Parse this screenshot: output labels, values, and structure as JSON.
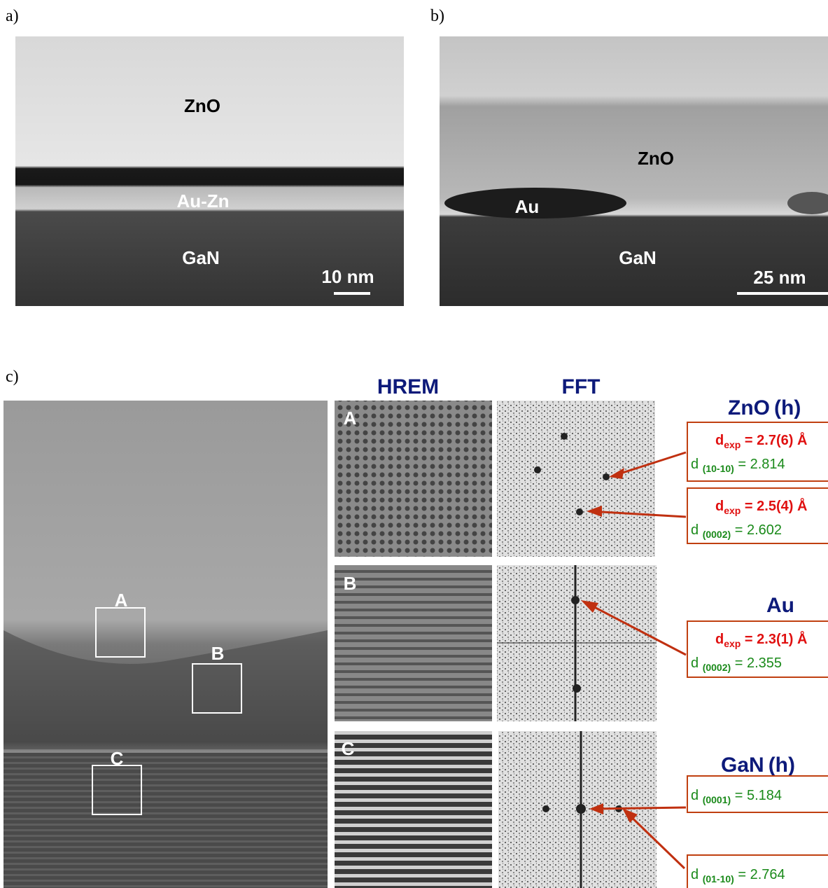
{
  "panels": {
    "a": {
      "label": "a)",
      "layers": [
        "ZnO",
        "Au-Zn",
        "GaN"
      ],
      "scale_bar": "10 nm"
    },
    "b": {
      "label": "b)",
      "layers": [
        "ZnO",
        "Au",
        "GaN"
      ],
      "scale_bar": "25 nm"
    },
    "c": {
      "label": "c)",
      "regions": [
        "A",
        "B",
        "C"
      ],
      "column_headers": [
        "HREM",
        "FFT"
      ],
      "tile_labels": [
        "A",
        "B",
        "C"
      ],
      "phases": [
        {
          "name": "ZnO",
          "suffix": "(h)",
          "boxes": [
            {
              "exp": {
                "main": "d",
                "sub": "exp",
                "rest": " = 2.7(6) Å"
              },
              "ref": {
                "main": "d ",
                "sub": "(10-10)",
                "rest": " = 2.814"
              }
            },
            {
              "exp": {
                "main": "d",
                "sub": "exp",
                "rest": " = 2.5(4) Å"
              },
              "ref": {
                "main": "d ",
                "sub": "(0002)",
                "rest": " = 2.602"
              }
            }
          ]
        },
        {
          "name": "Au",
          "boxes": [
            {
              "exp": {
                "main": "d",
                "sub": "exp",
                "rest": " = 2.3(1) Å"
              },
              "ref": {
                "main": "d ",
                "sub": "(0002)",
                "rest": " = 2.355"
              }
            }
          ]
        },
        {
          "name": "GaN",
          "suffix": "(h)",
          "boxes": [
            {
              "ref": {
                "main": "d ",
                "sub": "(0001)",
                "rest": " = 5.184"
              }
            },
            {
              "ref": {
                "main": "d ",
                "sub": "(01-10)",
                "rest": " = 2.764"
              }
            }
          ]
        }
      ]
    }
  }
}
